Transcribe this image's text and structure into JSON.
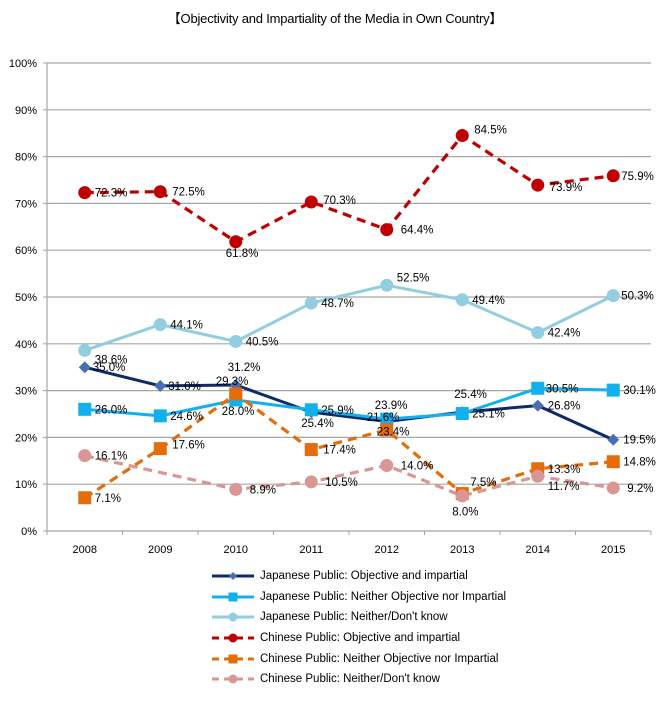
{
  "chart_data": {
    "type": "line",
    "title": "【Objectivity and Impartiality of the Media in Own Country】",
    "xlabel": "",
    "ylabel": "",
    "categories": [
      "2008",
      "2009",
      "2010",
      "2011",
      "2012",
      "2013",
      "2014",
      "2015"
    ],
    "ylim": [
      0,
      100
    ],
    "yticks": [
      "0%",
      "10%",
      "20%",
      "30%",
      "40%",
      "50%",
      "60%",
      "70%",
      "80%",
      "90%",
      "100%"
    ],
    "grid": true,
    "legend_position": "bottom",
    "series": [
      {
        "name": "Japanese Public: Objective and impartial",
        "color": "#0d2a6b",
        "marker_color": "#4a6fb0",
        "dash": false,
        "marker": "diamond",
        "values": [
          35.0,
          31.0,
          31.2,
          25.4,
          23.4,
          25.4,
          26.8,
          19.5
        ],
        "labels": [
          "35.0%",
          "31.0%",
          "31.2%",
          "25.4%",
          "23.4%",
          "25.4%",
          "26.8%",
          "19.5%"
        ]
      },
      {
        "name": "Japanese Public: Neither Objective nor Impartial",
        "color": "#12b0ec",
        "marker_color": "#12b0ec",
        "dash": false,
        "marker": "square",
        "values": [
          26.0,
          24.6,
          28.0,
          25.9,
          23.9,
          25.1,
          30.5,
          30.1
        ],
        "labels": [
          "26.0%",
          "24.6%",
          "28.0%",
          "25.9%",
          "23.9%",
          "25.1%",
          "30.5%",
          "30.1%"
        ]
      },
      {
        "name": "Japanese Public: Neither/Don't know",
        "color": "#92cde0",
        "marker_color": "#92cde0",
        "dash": false,
        "marker": "circle",
        "values": [
          38.6,
          44.1,
          40.5,
          48.7,
          52.5,
          49.4,
          42.4,
          50.3
        ],
        "labels": [
          "38.6%",
          "44.1%",
          "40.5%",
          "48.7%",
          "52.5%",
          "49.4%",
          "42.4%",
          "50.3%"
        ]
      },
      {
        "name": "Chinese Public: Objective and impartial",
        "color": "#c00000",
        "marker_color": "#c00000",
        "dash": true,
        "marker": "circle",
        "values": [
          72.3,
          72.5,
          61.8,
          70.3,
          64.4,
          84.5,
          73.9,
          75.9
        ],
        "labels": [
          "72.3%",
          "72.5%",
          "61.8%",
          "70.3%",
          "64.4%",
          "84.5%",
          "73.9%",
          "75.9%"
        ]
      },
      {
        "name": "Chinese Public: Neither Objective nor Impartial",
        "color": "#e46c0a",
        "marker_color": "#e46c0a",
        "dash": true,
        "marker": "square",
        "values": [
          7.1,
          17.6,
          29.3,
          17.4,
          21.6,
          8.0,
          13.3,
          14.8
        ],
        "labels": [
          "7.1%",
          "17.6%",
          "29.3%",
          "17.4%",
          "21.6%",
          "8.0%",
          "13.3%",
          "14.8%"
        ]
      },
      {
        "name": "Chinese Public: Neither/Don't know",
        "color": "#d99694",
        "marker_color": "#d99694",
        "dash": true,
        "marker": "circle",
        "values": [
          16.1,
          null,
          8.9,
          10.5,
          14.0,
          7.5,
          11.7,
          9.2
        ],
        "labels": [
          "16.1%",
          null,
          "8.9%",
          "10.5%",
          "14.0%",
          "7.5%",
          "11.7%",
          "9.2%"
        ]
      }
    ]
  }
}
